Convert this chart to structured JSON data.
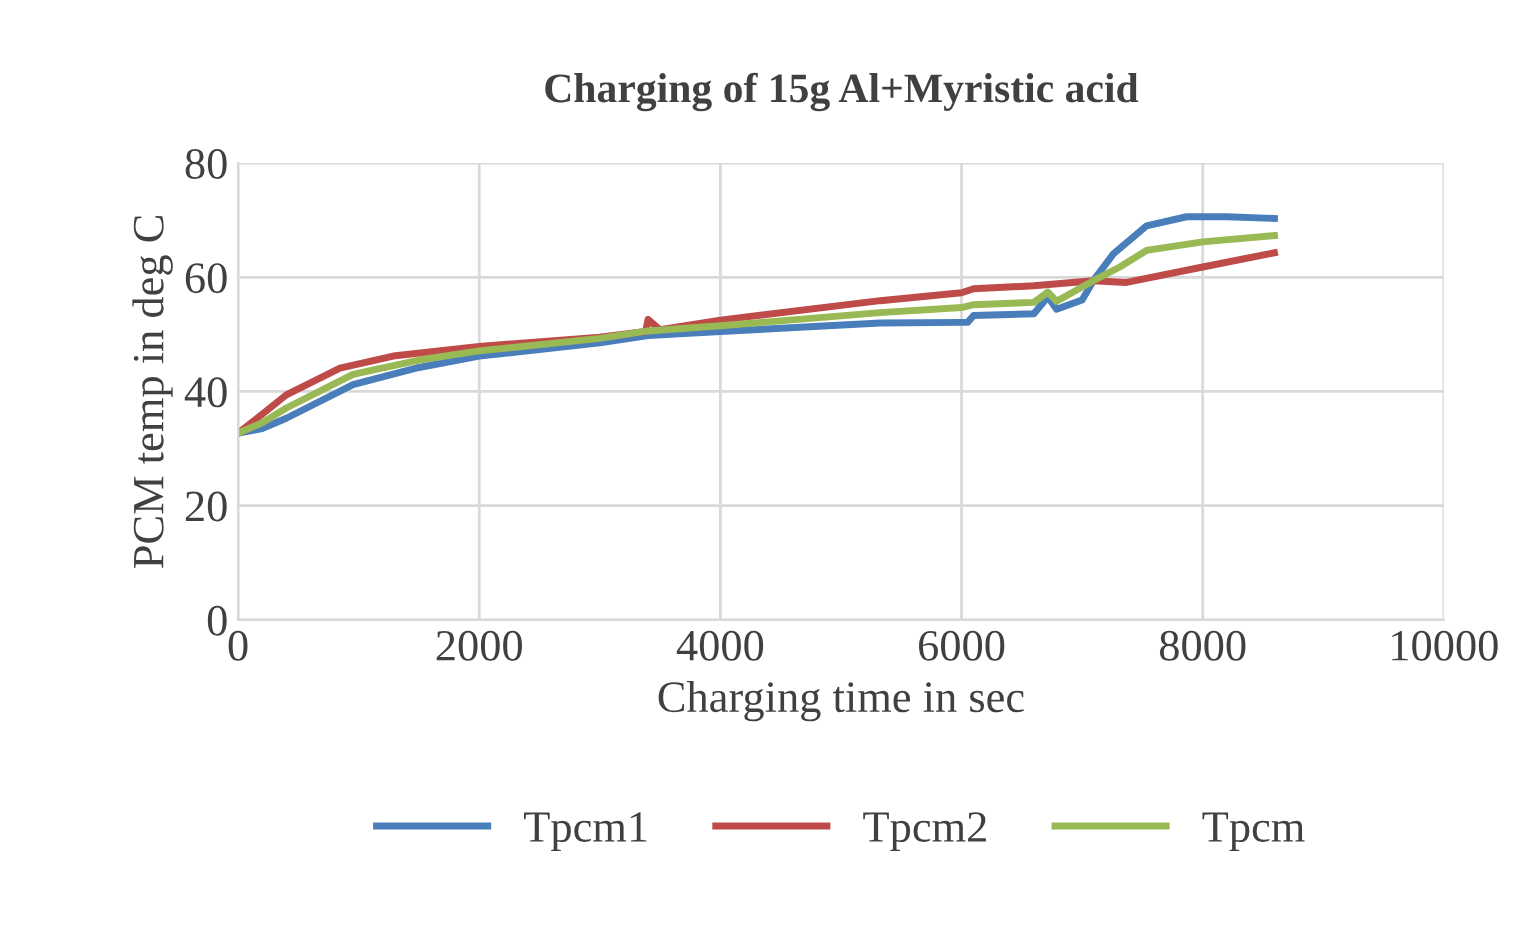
{
  "chart_data": {
    "type": "line",
    "title": "Charging of 15g Al+Myristic acid",
    "xlabel": "Charging time in sec",
    "ylabel": "PCM temp in deg C",
    "xlim": [
      0,
      10000
    ],
    "xticks": [
      0,
      2000,
      4000,
      6000,
      8000,
      10000
    ],
    "ylim": [
      0,
      80
    ],
    "yticks": [
      0,
      20,
      40,
      60,
      80
    ],
    "grid": true,
    "legend": "bottom",
    "marker": "none",
    "line_style": "solid",
    "series": [
      {
        "name": "Tpcm1",
        "color": "#4a7ebb",
        "x": [
          0,
          200,
          400,
          953,
          1500,
          2000,
          3000,
          3400,
          4000,
          5325,
          6000,
          6050,
          6100,
          6600,
          6716,
          6788,
          7000,
          7093,
          7259,
          7534,
          7866,
          8200,
          8595
        ],
        "values": [
          32.7,
          33.5,
          35.3,
          41.2,
          44.2,
          46.2,
          48.5,
          49.8,
          50.5,
          52,
          52.1,
          52.1,
          53.3,
          53.6,
          56.6,
          54.4,
          56,
          59.4,
          64.1,
          69,
          70.6,
          70.6,
          70.3
        ]
      },
      {
        "name": "Tpcm2",
        "color": "#be4b48",
        "x": [
          0,
          200,
          400,
          845,
          1287,
          2000,
          3000,
          3380,
          3400,
          3500,
          4000,
          5325,
          6000,
          6100,
          6600,
          7093,
          7368,
          8000,
          8595
        ],
        "values": [
          32.7,
          36,
          39.4,
          44.1,
          46.2,
          47.9,
          49.5,
          50.5,
          52.6,
          50.8,
          52.5,
          55.9,
          57.3,
          58,
          58.5,
          59.4,
          59.1,
          61.8,
          64.3
        ]
      },
      {
        "name": "Tpcm",
        "color": "#98b954",
        "x": [
          0,
          200,
          400,
          953,
          1500,
          2000,
          3000,
          3400,
          4000,
          5325,
          6000,
          6100,
          6600,
          6716,
          6788,
          7093,
          7313,
          7534,
          8000,
          8595
        ],
        "values": [
          32.7,
          34.5,
          37.1,
          43,
          45.5,
          47.1,
          49.3,
          50.6,
          51.5,
          53.8,
          54.7,
          55.2,
          55.6,
          57.4,
          55.8,
          59.4,
          61.8,
          64.7,
          66.2,
          67.3
        ]
      }
    ]
  }
}
